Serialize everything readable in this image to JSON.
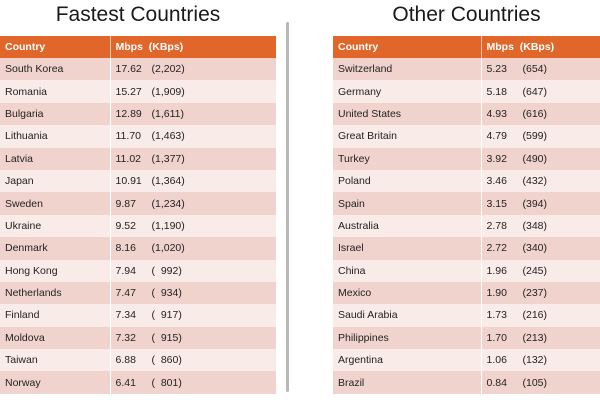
{
  "chart_data": [
    {
      "type": "table",
      "title": "Fastest Countries",
      "columns": [
        "Country",
        "Mbps  (KBps)"
      ],
      "rows": [
        {
          "country": "South Korea",
          "mbps": "17.62",
          "kbps": "(2,202)"
        },
        {
          "country": "Romania",
          "mbps": "15.27",
          "kbps": "(1,909)"
        },
        {
          "country": "Bulgaria",
          "mbps": "12.89",
          "kbps": "(1,611)"
        },
        {
          "country": "Lithuania",
          "mbps": "11.70",
          "kbps": "(1,463)"
        },
        {
          "country": "Latvia",
          "mbps": "11.02",
          "kbps": "(1,377)"
        },
        {
          "country": "Japan",
          "mbps": "10.91",
          "kbps": "(1,364)"
        },
        {
          "country": "Sweden",
          "mbps": "9.87",
          "kbps": "(1,234)"
        },
        {
          "country": "Ukraine",
          "mbps": "9.52",
          "kbps": "(1,190)"
        },
        {
          "country": "Denmark",
          "mbps": "8.16",
          "kbps": "(1,020)"
        },
        {
          "country": "Hong Kong",
          "mbps": "7.94",
          "kbps": "(  992)"
        },
        {
          "country": "Netherlands",
          "mbps": "7.47",
          "kbps": "(  934)"
        },
        {
          "country": "Finland",
          "mbps": "7.34",
          "kbps": "(  917)"
        },
        {
          "country": "Moldova",
          "mbps": "7.32",
          "kbps": "(  915)"
        },
        {
          "country": "Taiwan",
          "mbps": "6.88",
          "kbps": "(  860)"
        },
        {
          "country": "Norway",
          "mbps": "6.41",
          "kbps": "(  801)"
        }
      ]
    },
    {
      "type": "table",
      "title": "Other Countries",
      "columns": [
        "Country",
        "Mbps  (KBps)"
      ],
      "rows": [
        {
          "country": "Switzerland",
          "mbps": "5.23",
          "kbps": "(654)"
        },
        {
          "country": "Germany",
          "mbps": "5.18",
          "kbps": "(647)"
        },
        {
          "country": "United States",
          "mbps": "4.93",
          "kbps": "(616)"
        },
        {
          "country": "Great Britain",
          "mbps": "4.79",
          "kbps": "(599)"
        },
        {
          "country": "Turkey",
          "mbps": "3.92",
          "kbps": "(490)"
        },
        {
          "country": "Poland",
          "mbps": "3.46",
          "kbps": "(432)"
        },
        {
          "country": "Spain",
          "mbps": "3.15",
          "kbps": "(394)"
        },
        {
          "country": "Australia",
          "mbps": "2.78",
          "kbps": "(348)"
        },
        {
          "country": "Israel",
          "mbps": "2.72",
          "kbps": "(340)"
        },
        {
          "country": "China",
          "mbps": "1.96",
          "kbps": "(245)"
        },
        {
          "country": "Mexico",
          "mbps": "1.90",
          "kbps": "(237)"
        },
        {
          "country": "Saudi Arabia",
          "mbps": "1.73",
          "kbps": "(216)"
        },
        {
          "country": "Philippines",
          "mbps": "1.70",
          "kbps": "(213)"
        },
        {
          "country": "Argentina",
          "mbps": "1.06",
          "kbps": "(132)"
        },
        {
          "country": "Brazil",
          "mbps": "0.84",
          "kbps": "(105)"
        }
      ]
    }
  ],
  "colors": {
    "header_bg": "#e0662a",
    "row_odd": "#f1d3ce",
    "row_even": "#f9ebe8"
  }
}
